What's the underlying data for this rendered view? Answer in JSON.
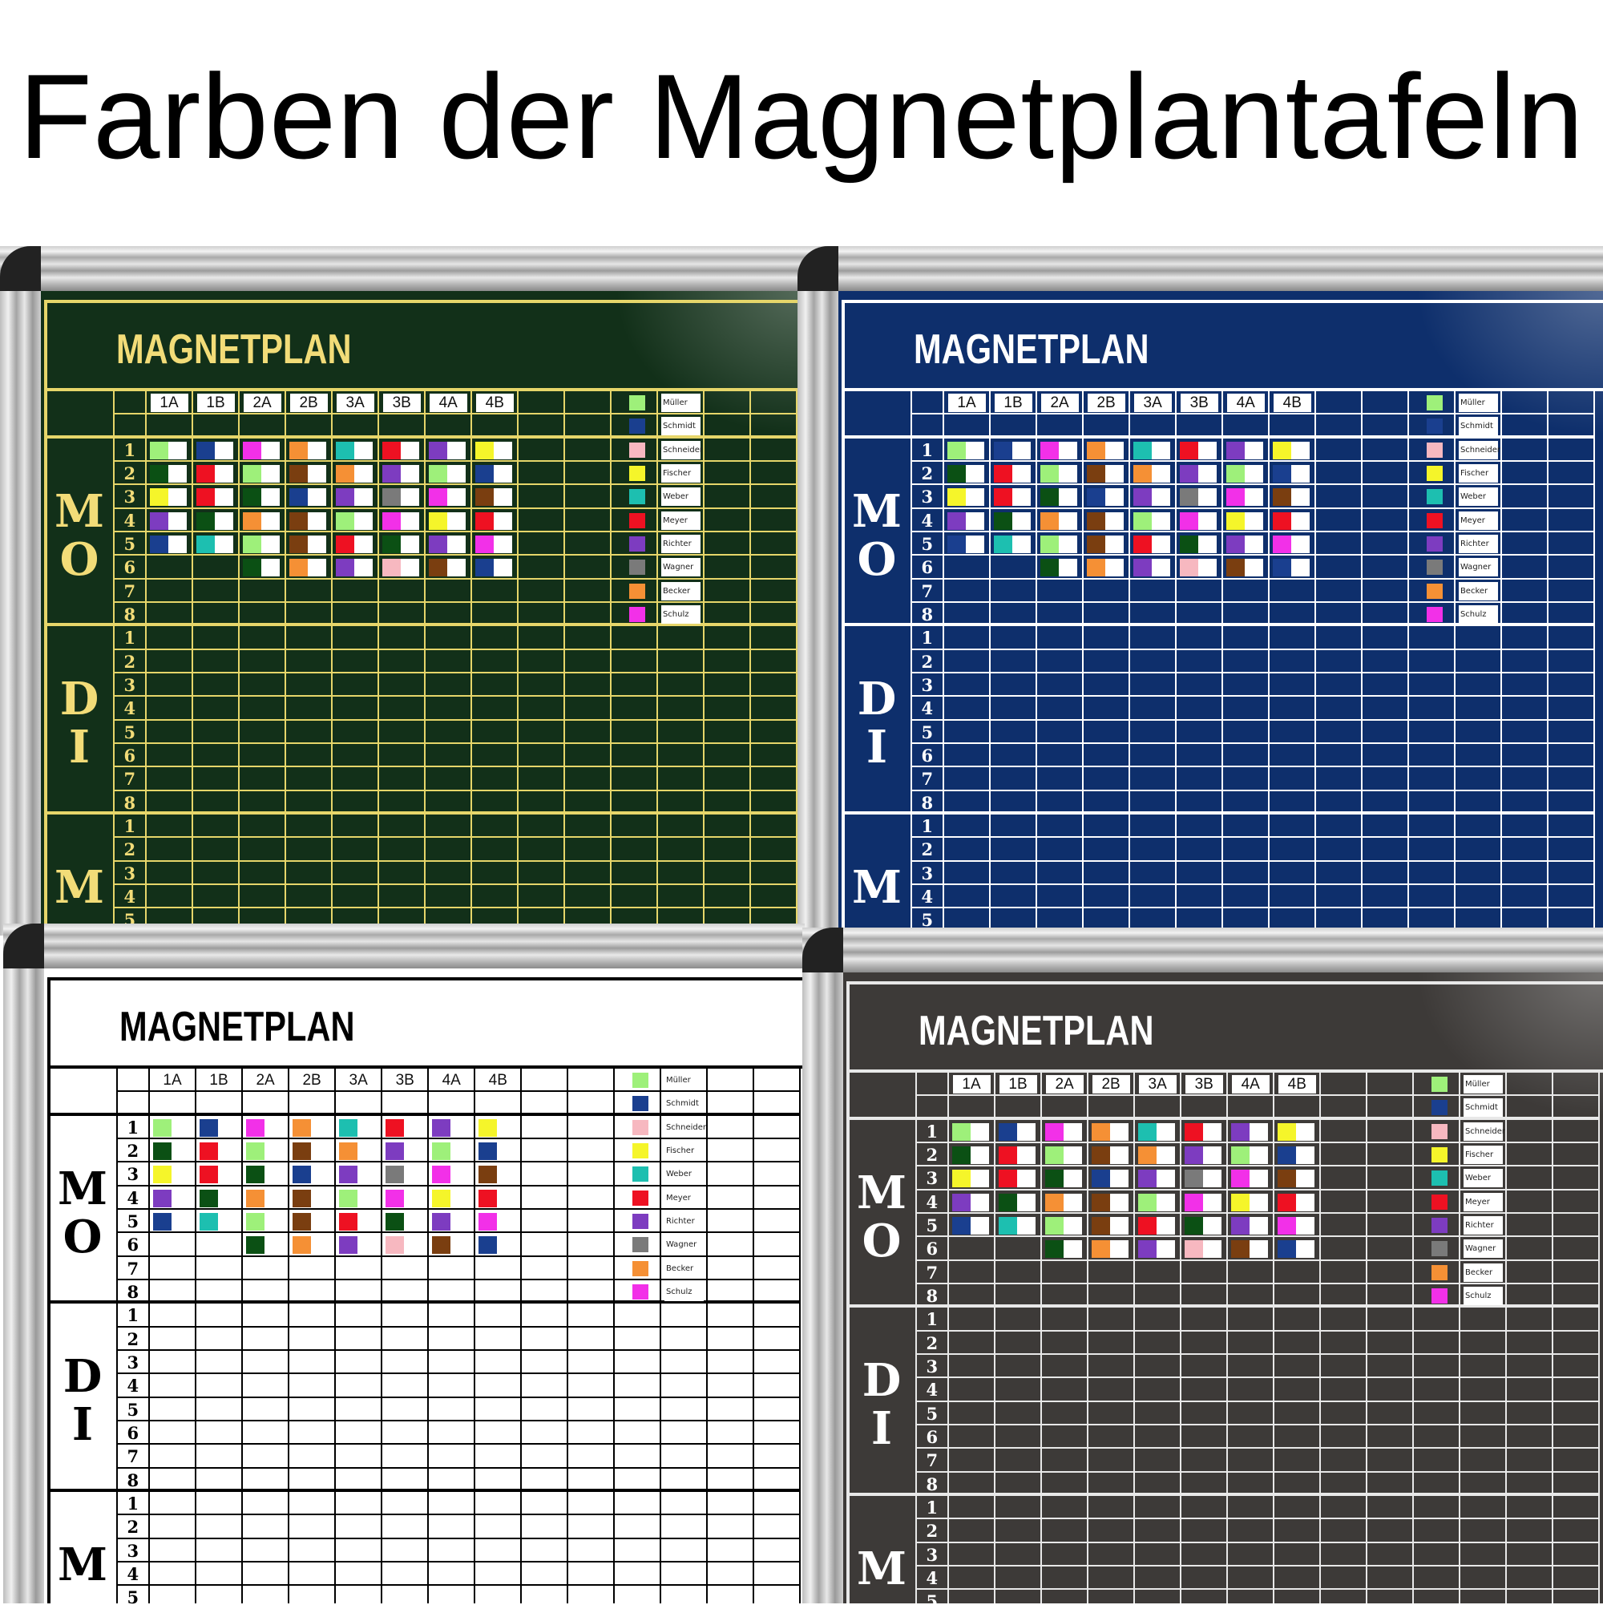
{
  "title": "Farben der Magnetplantafeln",
  "palette": {
    "lightgreen": "#9ef07a",
    "blue": "#1a3f8f",
    "pink": "#f7b8c0",
    "yellow": "#f5f52a",
    "teal": "#1dbfb0",
    "red": "#ee1122",
    "purple": "#7d3cc0",
    "gray": "#7a7a7a",
    "orange": "#f59035",
    "magenta": "#f230e8",
    "darkgreen": "#0b5014",
    "brown": "#7a3e10"
  },
  "columns": [
    "1A",
    "1B",
    "2A",
    "2B",
    "3A",
    "3B",
    "4A",
    "4B"
  ],
  "legend": [
    {
      "name": "Müller",
      "color": "lightgreen"
    },
    {
      "name": "Schmidt",
      "color": "blue"
    },
    {
      "name": "Schneider",
      "color": "pink"
    },
    {
      "name": "Fischer",
      "color": "yellow"
    },
    {
      "name": "Weber",
      "color": "teal"
    },
    {
      "name": "Meyer",
      "color": "red"
    },
    {
      "name": "Richter",
      "color": "purple"
    },
    {
      "name": "Wagner",
      "color": "gray"
    },
    {
      "name": "Becker",
      "color": "orange"
    },
    {
      "name": "Schulz",
      "color": "magenta"
    }
  ],
  "days": [
    {
      "letters": [
        "M",
        "O"
      ],
      "rows": [
        "1",
        "2",
        "3",
        "4",
        "5",
        "6",
        "7",
        "8"
      ]
    },
    {
      "letters": [
        "D",
        "I"
      ],
      "rows": [
        "1",
        "2",
        "3",
        "4",
        "5",
        "6",
        "7",
        "8"
      ]
    },
    {
      "letters": [
        "M"
      ],
      "rows": [
        "1",
        "2",
        "3",
        "4",
        "5"
      ]
    }
  ],
  "magnets": [
    [
      "lightgreen",
      "blue",
      "magenta",
      "orange",
      "teal",
      "red",
      "purple",
      "yellow"
    ],
    [
      "darkgreen",
      "red",
      "lightgreen",
      "brown",
      "orange",
      "purple",
      "lightgreen",
      "blue"
    ],
    [
      "yellow",
      "red",
      "darkgreen",
      "blue",
      "purple",
      "gray",
      "magenta",
      "brown"
    ],
    [
      "purple",
      "darkgreen",
      "orange",
      "brown",
      "lightgreen",
      "magenta",
      "yellow",
      "red"
    ],
    [
      "blue",
      "teal",
      "lightgreen",
      "brown",
      "red",
      "darkgreen",
      "purple",
      "magenta"
    ],
    [
      null,
      null,
      "darkgreen",
      "orange",
      "purple",
      "pink",
      "brown",
      "blue"
    ]
  ],
  "boards": [
    {
      "id": "green",
      "title": "MAGNETPLAN",
      "background": "#123019",
      "line": "#e6d66a",
      "text": "#f2dc78"
    },
    {
      "id": "blue",
      "title": "MAGNETPLAN",
      "background": "#0e2f6c",
      "line": "#ffffff",
      "text": "#ffffff"
    },
    {
      "id": "white",
      "title": "MAGNETPLAN",
      "background": "#ffffff",
      "line": "#000000",
      "text": "#000000"
    },
    {
      "id": "dark",
      "title": "MAGNETPLAN",
      "background": "#3d3a38",
      "line": "#e8e8e8",
      "text": "#ffffff"
    }
  ]
}
